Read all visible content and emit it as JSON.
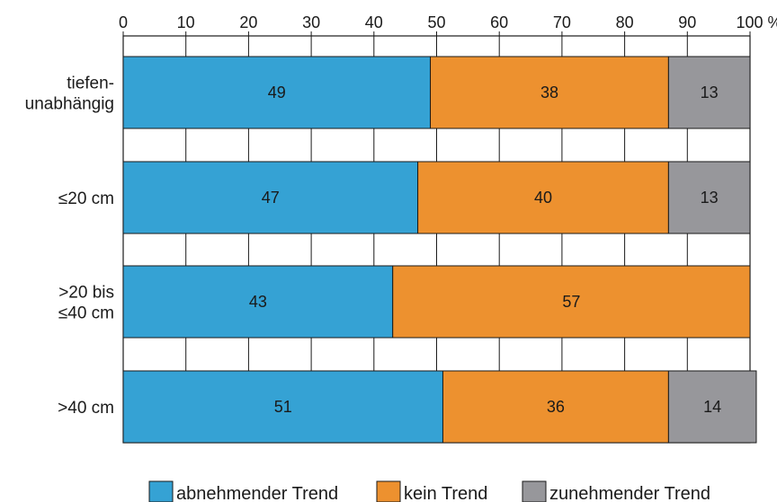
{
  "chart_data": {
    "type": "bar",
    "orientation": "horizontal",
    "stacked": true,
    "categories": [
      [
        "tiefen-",
        "unabhängig"
      ],
      [
        "≤20 cm"
      ],
      [
        ">20 bis",
        "≤40 cm"
      ],
      [
        ">40 cm"
      ]
    ],
    "series": [
      {
        "name": "abnehmender Trend",
        "color": "#35a2d4",
        "values": [
          49,
          47,
          43,
          51
        ]
      },
      {
        "name": "kein Trend",
        "color": "#ed912f",
        "values": [
          38,
          40,
          57,
          36
        ]
      },
      {
        "name": "zunehmender Trend",
        "color": "#97979b",
        "values": [
          13,
          13,
          0,
          14
        ]
      }
    ],
    "data_labels": [
      [
        "49",
        "38",
        "13"
      ],
      [
        "47",
        "40",
        "13"
      ],
      [
        "43",
        "57",
        ""
      ],
      [
        "51",
        "36",
        "14"
      ]
    ],
    "x_ticks": [
      "0",
      "10",
      "20",
      "30",
      "40",
      "50",
      "60",
      "70",
      "80",
      "90",
      "100 %"
    ],
    "xlim": [
      0,
      100
    ],
    "grid": true,
    "legend_position": "bottom"
  }
}
